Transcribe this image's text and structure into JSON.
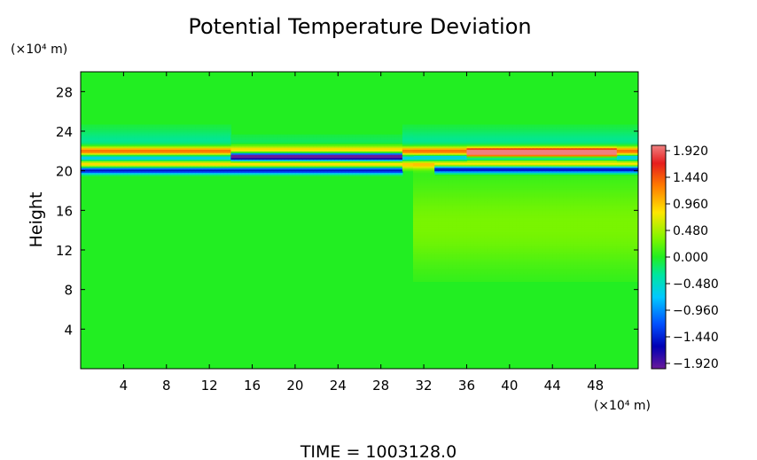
{
  "chart_data": {
    "type": "heatmap",
    "title": "Potential Temperature Deviation",
    "ylabel": "Height",
    "y_unit": "(×10⁴ m)",
    "x_unit": "(×10⁴ m)",
    "xlim": [
      0,
      52
    ],
    "ylim": [
      0,
      30
    ],
    "x_ticks": [
      4,
      8,
      12,
      16,
      20,
      24,
      28,
      32,
      36,
      40,
      44,
      48
    ],
    "y_ticks": [
      4,
      8,
      12,
      16,
      20,
      24,
      28
    ],
    "colorbar": {
      "ticks": [
        "1.920",
        "1.440",
        "0.960",
        "0.480",
        "0.000",
        "−0.480",
        "−0.960",
        "−1.440",
        "−1.920"
      ],
      "range": [
        -1.92,
        1.92
      ]
    },
    "footer": "TIME  =  1003128.0",
    "features": [
      {
        "x_range": [
          0,
          52
        ],
        "y_center": 22.0,
        "y_halfwidth": 0.5,
        "value": 1.6
      },
      {
        "x_range": [
          0,
          52
        ],
        "y_center": 21.3,
        "y_halfwidth": 0.45,
        "value": -1.2
      },
      {
        "x_range": [
          0,
          52
        ],
        "y_center": 20.8,
        "y_halfwidth": 0.5,
        "value": 1.2
      },
      {
        "x_range": [
          0,
          30
        ],
        "y_center": 20.1,
        "y_halfwidth": 0.35,
        "value": -1.6
      },
      {
        "x_range": [
          33,
          52
        ],
        "y_center": 20.2,
        "y_halfwidth": 0.35,
        "value": -1.8
      },
      {
        "x_range": [
          14,
          30
        ],
        "y_center": 21.6,
        "y_halfwidth": 0.45,
        "value": -1.9
      },
      {
        "x_range": [
          36,
          50
        ],
        "y_center": 21.8,
        "y_halfwidth": 0.4,
        "value": 1.7
      },
      {
        "x_range": [
          0,
          52
        ],
        "y_center": 22.8,
        "y_halfwidth": 1.5,
        "value": -0.3
      },
      {
        "x_range": [
          14,
          30
        ],
        "y_center": 23.6,
        "y_halfwidth": 1.8,
        "value": 0.15
      },
      {
        "x_range": [
          31,
          52
        ],
        "y_center": 14.5,
        "y_halfwidth": 4.5,
        "value": 0.3
      }
    ]
  }
}
